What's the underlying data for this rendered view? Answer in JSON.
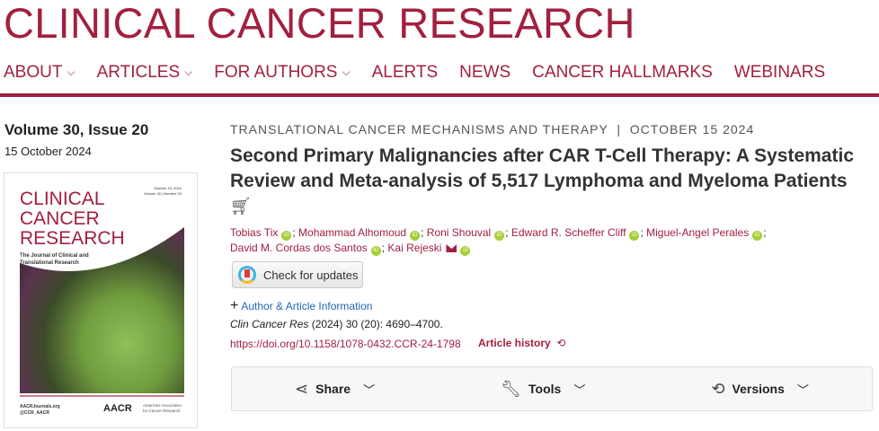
{
  "masthead": "CLINICAL CANCER RESEARCH",
  "nav": [
    {
      "label": "ABOUT",
      "dropdown": true
    },
    {
      "label": "ARTICLES",
      "dropdown": true
    },
    {
      "label": "FOR AUTHORS",
      "dropdown": true
    },
    {
      "label": "ALERTS",
      "dropdown": false
    },
    {
      "label": "NEWS",
      "dropdown": false
    },
    {
      "label": "CANCER HALLMARKS",
      "dropdown": false
    },
    {
      "label": "WEBINARS",
      "dropdown": false
    }
  ],
  "issue": {
    "volume": "Volume 30, Issue 20",
    "date": "15 October 2024"
  },
  "cover": {
    "title": "CLINICAL CANCER RESEARCH",
    "subtitle": "The Journal of Clinical and Translational Research",
    "date": "October 15, 2024",
    "vol": "Volume 30 | Number 20",
    "site": "AACRJournals.org",
    "handle": "@CCR_AACR",
    "logo": "AACR",
    "org": "American Association for Cancer Research"
  },
  "article": {
    "category": "TRANSLATIONAL CANCER MECHANISMS AND THERAPY",
    "date": "OCTOBER 15 2024",
    "title": "Second Primary Malignancies after CAR T-Cell Therapy: A Systematic Review and Meta-analysis of 5,517 Lymphoma and Myeloma Patients",
    "authors": [
      "Tobias Tix",
      "Mohammad Alhomoud",
      "Roni Shouval",
      "Edward R. Scheffer Cliff",
      "Miguel-Angel Perales",
      "David M. Cordas dos Santos",
      "Kai Rejeski"
    ],
    "check_updates": "Check for updates",
    "author_info": "Author & Article Information",
    "journal": "Clin Cancer Res",
    "citation": " (2024) 30 (20): 4690–4700.",
    "doi": "https://doi.org/10.1158/1078-0432.CCR-24-1798",
    "history": "Article history"
  },
  "toolbar": {
    "share": "Share",
    "tools": "Tools",
    "versions": "Versions"
  },
  "colors": {
    "brand": "#a2203f",
    "link": "#2466b3",
    "orcid": "#a6ce39"
  }
}
